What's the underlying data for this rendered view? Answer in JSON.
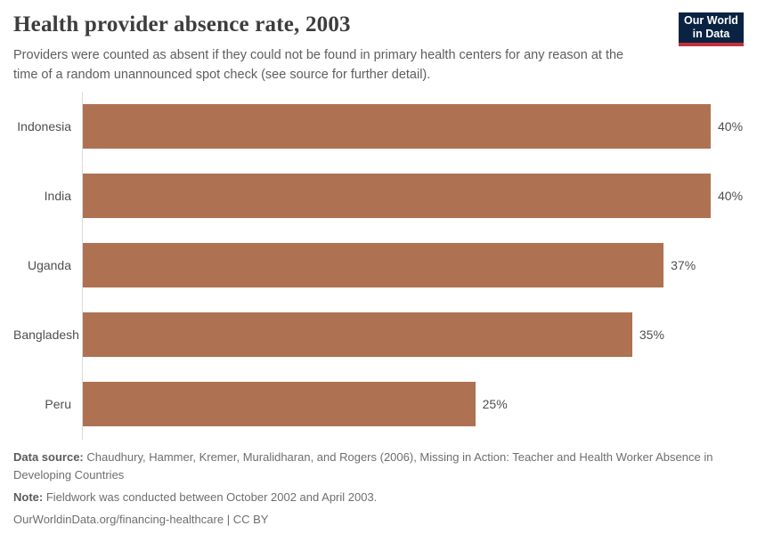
{
  "header": {
    "title": "Health provider absence rate, 2003",
    "subtitle": "Providers were counted as absent if they could not be found in primary health centers for any reason at the time of a random unannounced spot check (see source for further detail).",
    "logo": {
      "line1": "Our World",
      "line2": "in Data"
    }
  },
  "chart_data": {
    "type": "bar",
    "orientation": "horizontal",
    "title": "Health provider absence rate, 2003",
    "categories": [
      "Indonesia",
      "India",
      "Uganda",
      "Bangladesh",
      "Peru"
    ],
    "values": [
      40,
      40,
      37,
      35,
      25
    ],
    "value_labels": [
      "40%",
      "40%",
      "37%",
      "35%",
      "25%"
    ],
    "unit": "%",
    "xlim": [
      0,
      40
    ],
    "grid": false,
    "legend": "none",
    "bar_color": "#ae7253"
  },
  "footer": {
    "data_source_label": "Data source:",
    "data_source_text": "Chaudhury, Hammer, Kremer, Muralidharan, and Rogers (2006), Missing in Action: Teacher and Health Worker Absence in Developing Countries",
    "note_label": "Note:",
    "note_text": "Fieldwork was conducted between October 2002 and April 2003.",
    "url": "OurWorldinData.org/financing-healthcare",
    "separator": "|",
    "license": "CC BY"
  },
  "colors": {
    "bar": "#ae7253",
    "axis_line": "#dcdcdc",
    "logo_background": "#0a2342",
    "logo_accent": "#c5303a",
    "title_text": "#3d3d3d",
    "body_text": "#5e5e5e"
  }
}
